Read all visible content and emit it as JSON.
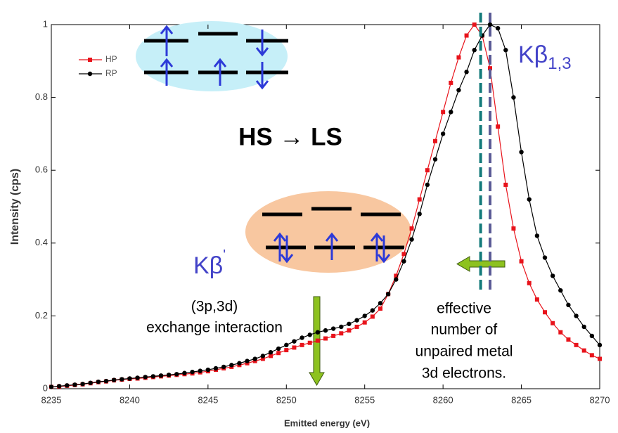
{
  "chart_data": {
    "type": "line",
    "x_label": "Emitted energy (eV)",
    "y_label": "Intensity (cps)",
    "xlim": [
      8235,
      8270
    ],
    "ylim": [
      0,
      1
    ],
    "xticks": [
      8235,
      8240,
      8245,
      8250,
      8255,
      8260,
      8265,
      8270
    ],
    "yticks": [
      0,
      0.2,
      0.4,
      0.6,
      0.8,
      1
    ],
    "legend": "upper left",
    "x": [
      8235,
      8235.5,
      8236,
      8236.5,
      8237,
      8237.5,
      8238,
      8238.5,
      8239,
      8239.5,
      8240,
      8240.5,
      8241,
      8241.5,
      8242,
      8242.5,
      8243,
      8243.5,
      8244,
      8244.5,
      8245,
      8245.5,
      8246,
      8246.5,
      8247,
      8247.5,
      8248,
      8248.5,
      8249,
      8249.5,
      8250,
      8250.5,
      8251,
      8251.5,
      8252,
      8252.5,
      8253,
      8253.5,
      8254,
      8254.5,
      8255,
      8255.5,
      8256,
      8256.5,
      8257,
      8257.5,
      8258,
      8258.5,
      8259,
      8259.5,
      8260,
      8260.5,
      8261,
      8261.5,
      8262,
      8262.5,
      8263,
      8263.5,
      8264,
      8264.5,
      8265,
      8265.5,
      8266,
      8266.5,
      8267,
      8267.5,
      8268,
      8268.5,
      8269,
      8269.5,
      8270
    ],
    "series": [
      {
        "name": "HP",
        "color": "#e8131b",
        "marker": "square",
        "values": [
          0.005,
          0.006,
          0.008,
          0.01,
          0.012,
          0.015,
          0.018,
          0.02,
          0.023,
          0.025,
          0.027,
          0.028,
          0.03,
          0.032,
          0.034,
          0.036,
          0.038,
          0.04,
          0.042,
          0.045,
          0.048,
          0.052,
          0.056,
          0.06,
          0.065,
          0.07,
          0.076,
          0.082,
          0.09,
          0.098,
          0.106,
          0.113,
          0.12,
          0.126,
          0.132,
          0.138,
          0.145,
          0.152,
          0.16,
          0.17,
          0.182,
          0.198,
          0.22,
          0.26,
          0.31,
          0.37,
          0.44,
          0.52,
          0.6,
          0.68,
          0.76,
          0.84,
          0.91,
          0.97,
          1.0,
          0.97,
          0.88,
          0.72,
          0.56,
          0.44,
          0.35,
          0.29,
          0.245,
          0.21,
          0.18,
          0.155,
          0.135,
          0.12,
          0.105,
          0.092,
          0.082
        ]
      },
      {
        "name": "RP",
        "color": "#000000",
        "marker": "circle",
        "values": [
          0.005,
          0.007,
          0.009,
          0.011,
          0.013,
          0.016,
          0.019,
          0.021,
          0.024,
          0.026,
          0.028,
          0.03,
          0.032,
          0.034,
          0.036,
          0.038,
          0.04,
          0.043,
          0.046,
          0.049,
          0.052,
          0.056,
          0.06,
          0.065,
          0.07,
          0.076,
          0.082,
          0.09,
          0.1,
          0.11,
          0.12,
          0.13,
          0.14,
          0.148,
          0.155,
          0.16,
          0.165,
          0.17,
          0.178,
          0.188,
          0.2,
          0.215,
          0.235,
          0.26,
          0.3,
          0.35,
          0.41,
          0.48,
          0.56,
          0.63,
          0.7,
          0.76,
          0.82,
          0.87,
          0.93,
          0.97,
          1.0,
          0.99,
          0.93,
          0.8,
          0.65,
          0.52,
          0.42,
          0.36,
          0.31,
          0.27,
          0.23,
          0.2,
          0.17,
          0.145,
          0.12
        ]
      }
    ],
    "peak_lines": [
      {
        "x": 8262.4,
        "color": "#137a7a"
      },
      {
        "x": 8263,
        "color": "#5b5b96"
      }
    ],
    "transition_label": "HS → LS",
    "peak_label": {
      "main": "Kβ",
      "sub": "1,3"
    },
    "satellite_label": {
      "main": "Kβ",
      "sup": "'"
    },
    "exchange_note": [
      "(3p,3d)",
      "exchange interaction"
    ],
    "shift_note": [
      "effective",
      "number of",
      "unpaired metal",
      "3d electrons."
    ]
  }
}
